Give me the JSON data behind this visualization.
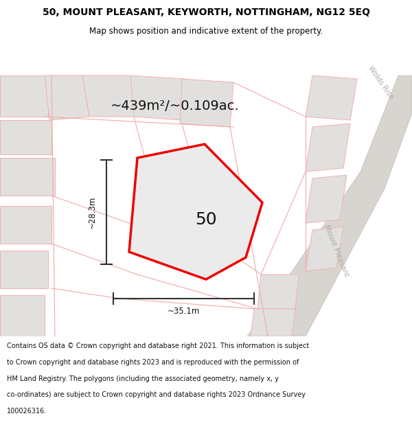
{
  "title_line1": "50, MOUNT PLEASANT, KEYWORTH, NOTTINGHAM, NG12 5EQ",
  "title_line2": "Map shows position and indicative extent of the property.",
  "area_label": "~439m²/~0.109ac.",
  "plot_number": "50",
  "dim_horizontal": "~35.1m",
  "dim_vertical": "~28.3m",
  "road_label1": "Mount Pleasant",
  "road_label2": "Wolds Rise",
  "footer_lines": [
    "Contains OS data © Crown copyright and database right 2021. This information is subject",
    "to Crown copyright and database rights 2023 and is reproduced with the permission of",
    "HM Land Registry. The polygons (including the associated geometry, namely x, y",
    "co-ordinates) are subject to Crown copyright and database rights 2023 Ordnance Survey",
    "100026316."
  ],
  "map_bg": "#f5f3f0",
  "building_fill": "#e2e0de",
  "building_edge": "#f0b0b0",
  "road_fill": "#d8d5d0",
  "plot_edge": "#ee0000",
  "plot_fill": "#ebebeb",
  "pink_line": "#f0aaaa",
  "dim_color": "#333333",
  "road_label_color": "#aaaaaa",
  "title_color": "#000000",
  "footer_color": "#111111",
  "title_fontsize": 10,
  "subtitle_fontsize": 8.5,
  "area_fontsize": 14,
  "plot_num_fontsize": 18,
  "dim_fontsize": 8.5,
  "road_fontsize": 7.5,
  "footer_fontsize": 7.0
}
